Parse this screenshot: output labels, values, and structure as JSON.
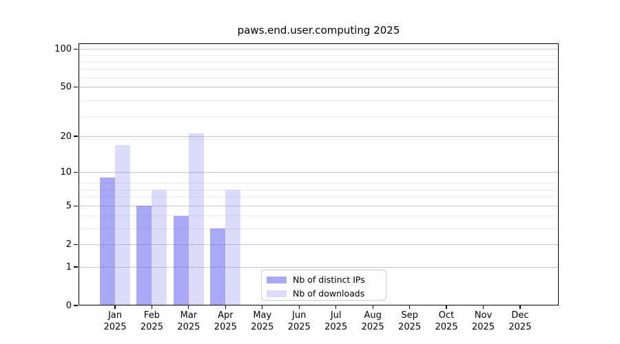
{
  "chart_data": {
    "type": "bar",
    "title": "paws.end.user.computing 2025",
    "x_months": [
      "Jan",
      "Feb",
      "Mar",
      "Apr",
      "May",
      "Jun",
      "Jul",
      "Aug",
      "Sep",
      "Oct",
      "Nov",
      "Dec"
    ],
    "x_year": "2025",
    "series": [
      {
        "name": "Nb of distinct IPs",
        "color": "rgba(100,100,240,0.56)",
        "values": [
          9,
          5,
          4,
          3,
          null,
          null,
          null,
          null,
          null,
          null,
          null,
          null
        ]
      },
      {
        "name": "Nb of downloads",
        "color": "rgba(100,100,240,0.23)",
        "values": [
          17,
          7,
          21,
          7,
          null,
          null,
          null,
          null,
          null,
          null,
          null,
          null
        ]
      }
    ],
    "y_axis": {
      "scale": "log10(value+1)",
      "major_ticks": [
        0,
        1,
        2,
        5,
        10,
        20,
        50,
        100
      ],
      "minor_gridline_values": [
        3,
        4,
        6,
        7,
        8,
        19,
        29,
        39,
        49,
        59,
        69,
        79,
        89
      ],
      "range_top_value": 110
    },
    "grid": {
      "major_color": "#c9c9c9",
      "minor_color": "#ebebeb"
    },
    "legend_position": "bottom-center"
  }
}
